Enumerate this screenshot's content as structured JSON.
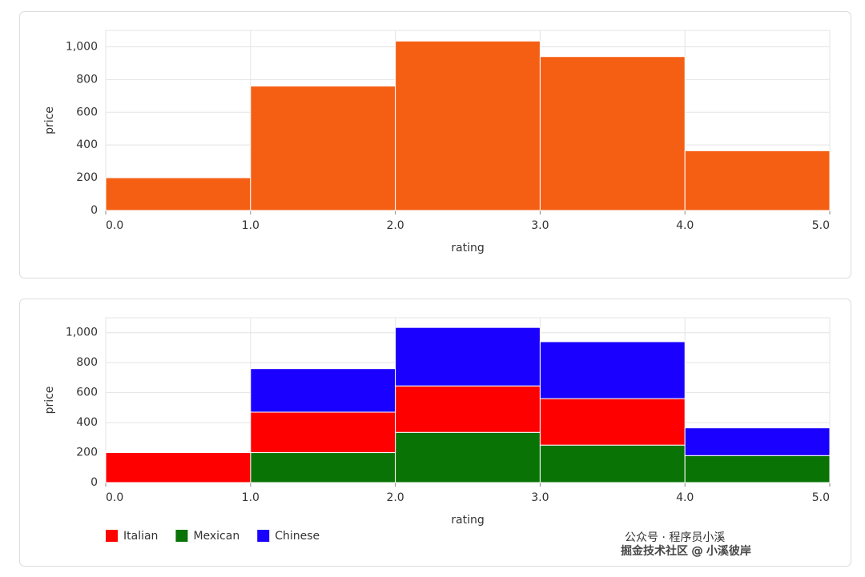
{
  "chart_data": [
    {
      "type": "histogram",
      "xlabel": "rating",
      "ylabel": "price",
      "bins": [
        0,
        1,
        2,
        3,
        4,
        5
      ],
      "values": [
        200,
        760,
        1035,
        940,
        365
      ],
      "color": "#f55f14",
      "xlim": [
        0,
        5
      ],
      "xticks": [
        {
          "value": 0,
          "label": "0.0"
        },
        {
          "value": 1,
          "label": "1.0"
        },
        {
          "value": 2,
          "label": "2.0"
        },
        {
          "value": 3,
          "label": "3.0"
        },
        {
          "value": 4,
          "label": "4.0"
        },
        {
          "value": 5,
          "label": "5.0"
        }
      ],
      "ylim": [
        0,
        1100
      ],
      "yticks": [
        0,
        200,
        400,
        600,
        800,
        {
          "value": 1000,
          "label": "1,000"
        }
      ],
      "grid": true
    },
    {
      "type": "histogram",
      "stacked": true,
      "xlabel": "rating",
      "ylabel": "price",
      "bins": [
        0,
        1,
        2,
        3,
        4,
        5
      ],
      "series": [
        {
          "name": "Mexican",
          "color": "#0a7306",
          "values": [
            0,
            200,
            335,
            250,
            180
          ]
        },
        {
          "name": "Italian",
          "color": "#ff0000",
          "values": [
            200,
            270,
            310,
            310,
            0
          ]
        },
        {
          "name": "Chinese",
          "color": "#1a00ff",
          "values": [
            0,
            290,
            390,
            380,
            185
          ]
        }
      ],
      "legend_order": [
        "Italian",
        "Mexican",
        "Chinese"
      ],
      "legend": "bottom-left",
      "xlim": [
        0,
        5
      ],
      "xticks": [
        {
          "value": 0,
          "label": "0.0"
        },
        {
          "value": 1,
          "label": "1.0"
        },
        {
          "value": 2,
          "label": "2.0"
        },
        {
          "value": 3,
          "label": "3.0"
        },
        {
          "value": 4,
          "label": "4.0"
        },
        {
          "value": 5,
          "label": "5.0"
        }
      ],
      "ylim": [
        0,
        1100
      ],
      "yticks": [
        0,
        200,
        400,
        600,
        800,
        {
          "value": 1000,
          "label": "1,000"
        }
      ],
      "grid": true
    }
  ],
  "watermark": [
    "公众号 · 程序员小溪",
    "掘金技术社区 @ 小溪彼岸"
  ]
}
